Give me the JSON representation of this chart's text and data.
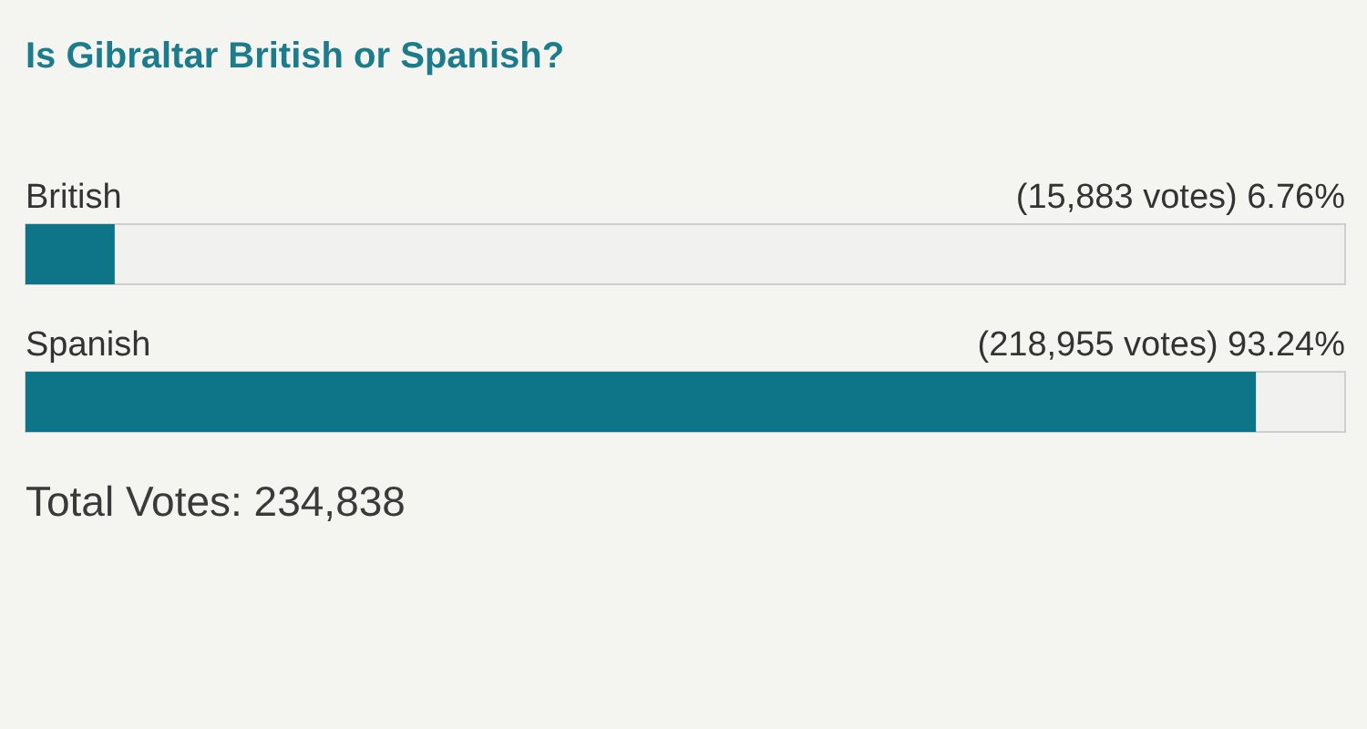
{
  "chart_data": {
    "type": "bar",
    "orientation": "horizontal",
    "title": "Is Gibraltar British or Spanish?",
    "categories": [
      "British",
      "Spanish"
    ],
    "values": [
      6.76,
      93.24
    ],
    "value_labels": [
      "(15,883 votes) 6.76%",
      "(218,955 votes) 93.24%"
    ],
    "color": "#0e7589",
    "xlim": [
      0,
      100
    ],
    "tick_labels": "y",
    "annotations": [
      "Total Votes: 234,838"
    ]
  }
}
